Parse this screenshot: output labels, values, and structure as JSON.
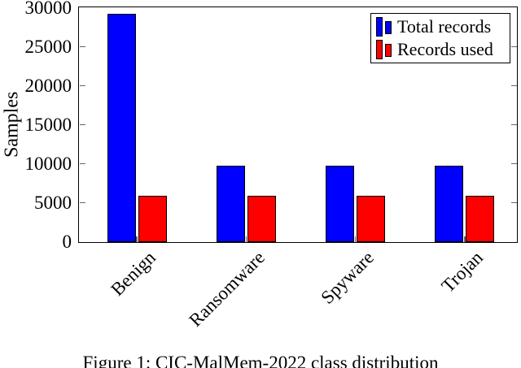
{
  "figure": {
    "caption": "Figure 1: CIC-MalMem-2022 class distribution",
    "background": "#ffffff"
  },
  "chart_data": {
    "type": "bar",
    "title": "",
    "xlabel": "",
    "ylabel": "Samples",
    "categories": [
      "Benign",
      "Ransomware",
      "Spyware",
      "Trojan"
    ],
    "series": [
      {
        "name": "Total records",
        "color": "#0000ff",
        "values": [
          29300,
          9800,
          9800,
          9800
        ]
      },
      {
        "name": "Records used",
        "color": "#ff0000",
        "values": [
          5900,
          5900,
          5900,
          5900
        ]
      }
    ],
    "ylim": [
      0,
      30000
    ],
    "yticks": [
      0,
      5000,
      10000,
      15000,
      20000,
      25000,
      30000
    ],
    "grid": false,
    "legend_position": "top-right",
    "bar_edge_color": "#000000",
    "axis_color": "#000000",
    "tick_color": "#666666"
  }
}
